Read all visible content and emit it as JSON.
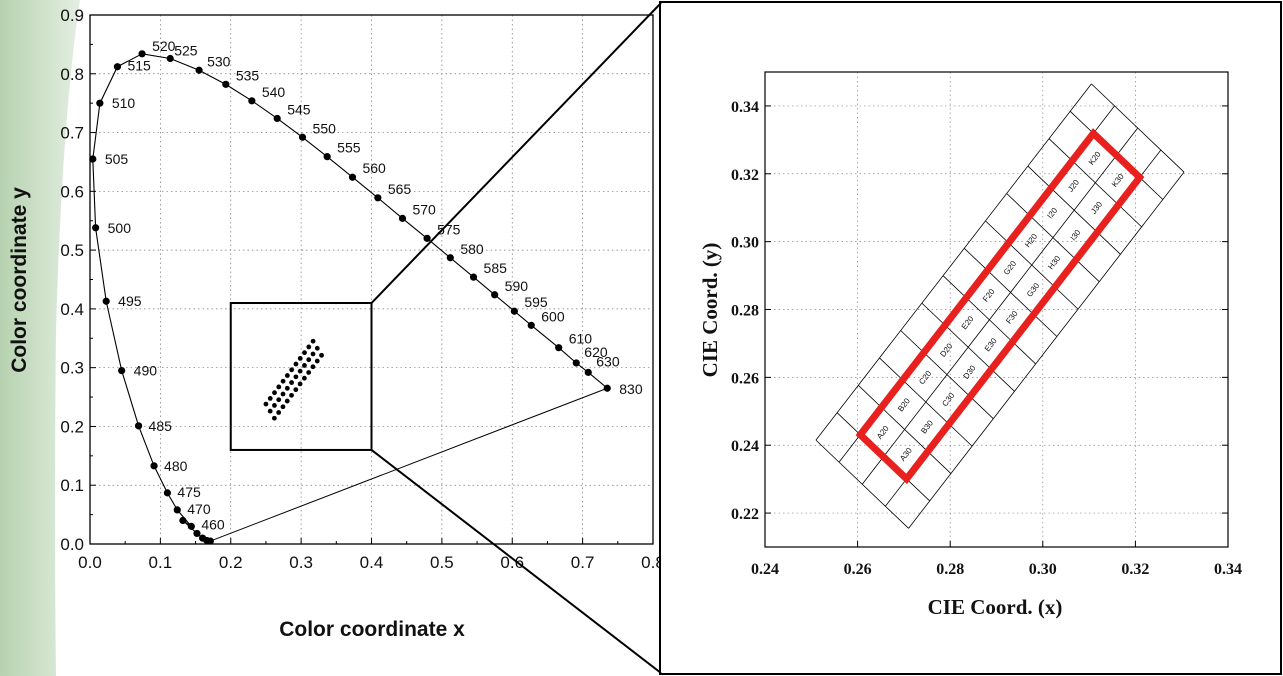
{
  "chart_data": [
    {
      "type": "scatter",
      "title": "",
      "xlabel": "Color coordinate x",
      "ylabel": "Color coordinate y",
      "xlim": [
        0.0,
        0.8
      ],
      "ylim": [
        0.0,
        0.9
      ],
      "xticks": [
        "0.0",
        "0.1",
        "0.2",
        "0.3",
        "0.4",
        "0.5",
        "0.6",
        "0.7",
        "0.8"
      ],
      "yticks": [
        "0.0",
        "0.1",
        "0.2",
        "0.3",
        "0.4",
        "0.5",
        "0.6",
        "0.7",
        "0.8",
        "0.9"
      ],
      "grid": "dotted",
      "series": [
        {
          "values": [
            {
              "wavelength": "460",
              "x": 0.144,
              "y": 0.03
            },
            {
              "wavelength": "",
              "x": 0.152,
              "y": 0.018
            },
            {
              "wavelength": "",
              "x": 0.16,
              "y": 0.01
            },
            {
              "wavelength": "",
              "x": 0.166,
              "y": 0.006
            },
            {
              "wavelength": "",
              "x": 0.171,
              "y": 0.005
            },
            {
              "wavelength": "470",
              "x": 0.124,
              "y": 0.058
            },
            {
              "wavelength": "",
              "x": 0.132,
              "y": 0.04
            },
            {
              "wavelength": "475",
              "x": 0.11,
              "y": 0.087
            },
            {
              "wavelength": "480",
              "x": 0.091,
              "y": 0.133
            },
            {
              "wavelength": "485",
              "x": 0.069,
              "y": 0.201
            },
            {
              "wavelength": "490",
              "x": 0.045,
              "y": 0.295
            },
            {
              "wavelength": "495",
              "x": 0.023,
              "y": 0.413
            },
            {
              "wavelength": "500",
              "x": 0.008,
              "y": 0.538
            },
            {
              "wavelength": "505",
              "x": 0.004,
              "y": 0.655
            },
            {
              "wavelength": "510",
              "x": 0.014,
              "y": 0.75
            },
            {
              "wavelength": "515",
              "x": 0.039,
              "y": 0.812
            },
            {
              "wavelength": "520",
              "x": 0.074,
              "y": 0.834
            },
            {
              "wavelength": "525",
              "x": 0.114,
              "y": 0.826
            },
            {
              "wavelength": "530",
              "x": 0.155,
              "y": 0.806
            },
            {
              "wavelength": "535",
              "x": 0.193,
              "y": 0.782
            },
            {
              "wavelength": "540",
              "x": 0.23,
              "y": 0.754
            },
            {
              "wavelength": "545",
              "x": 0.266,
              "y": 0.724
            },
            {
              "wavelength": "550",
              "x": 0.302,
              "y": 0.692
            },
            {
              "wavelength": "555",
              "x": 0.337,
              "y": 0.659
            },
            {
              "wavelength": "560",
              "x": 0.373,
              "y": 0.624
            },
            {
              "wavelength": "565",
              "x": 0.409,
              "y": 0.589
            },
            {
              "wavelength": "570",
              "x": 0.444,
              "y": 0.554
            },
            {
              "wavelength": "575",
              "x": 0.479,
              "y": 0.52
            },
            {
              "wavelength": "580",
              "x": 0.512,
              "y": 0.487
            },
            {
              "wavelength": "585",
              "x": 0.545,
              "y": 0.454
            },
            {
              "wavelength": "590",
              "x": 0.575,
              "y": 0.424
            },
            {
              "wavelength": "595",
              "x": 0.603,
              "y": 0.396
            },
            {
              "wavelength": "600",
              "x": 0.627,
              "y": 0.372
            },
            {
              "wavelength": "610",
              "x": 0.666,
              "y": 0.334
            },
            {
              "wavelength": "620",
              "x": 0.691,
              "y": 0.308
            },
            {
              "wavelength": "630",
              "x": 0.708,
              "y": 0.292
            },
            {
              "wavelength": "830",
              "x": 0.735,
              "y": 0.265
            }
          ]
        }
      ],
      "inset": {
        "xlim": [
          0.2,
          0.4
        ],
        "ylim": [
          0.16,
          0.41
        ]
      },
      "cluster": {
        "x0": 0.25,
        "y0": 0.238,
        "x1": 0.317,
        "y1": 0.345,
        "cols": 12,
        "rows": 3
      }
    },
    {
      "type": "scatter",
      "xlabel": "CIE Coord. (x)",
      "ylabel": "CIE Coord. (y)",
      "xlim": [
        0.24,
        0.34
      ],
      "ylim": [
        0.21,
        0.35
      ],
      "xticks": [
        "0.24",
        "0.26",
        "0.28",
        "0.30",
        "0.32",
        "0.34"
      ],
      "yticks": [
        "0.22",
        "0.24",
        "0.26",
        "0.28",
        "0.30",
        "0.32",
        "0.34"
      ],
      "grid": "dotted",
      "grid_rows": 4,
      "grid_cols": 13,
      "highlight_color": "#e8201e",
      "cell_labels": {
        "upper": [
          "A20",
          "B20",
          "C20",
          "D20",
          "E20",
          "F20",
          "G20",
          "H20",
          "I20",
          "J20",
          "K20"
        ],
        "lower": [
          "A30",
          "B30",
          "C30",
          "D30",
          "E30",
          "F30",
          "G30",
          "H30",
          "I30",
          "J30",
          "K30"
        ]
      }
    }
  ],
  "colors": {
    "accent_bar": "#c8dcc4",
    "highlight": "#e8201e"
  }
}
